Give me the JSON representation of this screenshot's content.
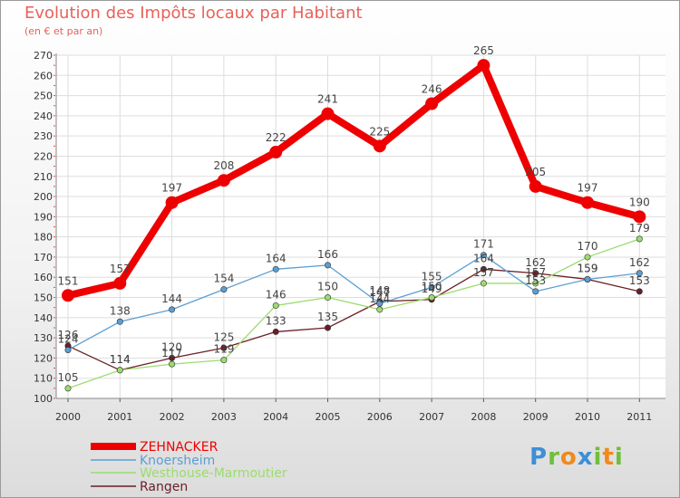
{
  "title": "Evolution des Impôts locaux par Habitant",
  "subtitle": "(en € et par an)",
  "logo": [
    "P",
    "r",
    "o",
    "x",
    "i",
    "t",
    "i"
  ],
  "logo_colors": [
    "#3d8fd6",
    "#6fbf3a",
    "#f08a1c",
    "#3d8fd6",
    "#6fbf3a",
    "#f08a1c",
    "#6fbf3a"
  ],
  "chart_data": {
    "type": "line",
    "title": "Evolution des Impôts locaux par Habitant",
    "subtitle": "(en € et par an)",
    "xlabel": "",
    "ylabel": "",
    "ylim": [
      100,
      270
    ],
    "yticks": [
      100,
      110,
      120,
      130,
      140,
      150,
      160,
      170,
      180,
      190,
      200,
      210,
      220,
      230,
      240,
      250,
      260,
      270
    ],
    "x": [
      "2000",
      "2001",
      "2002",
      "2003",
      "2004",
      "2005",
      "2006",
      "2007",
      "2008",
      "2009",
      "2010",
      "2011"
    ],
    "grid": true,
    "legend_position": "bottom-left",
    "series": [
      {
        "name": "Rangen",
        "color": "#6b1e24",
        "values": [
          126,
          114,
          120,
          125,
          133,
          135,
          148,
          149,
          164,
          162,
          159,
          153
        ]
      },
      {
        "name": "Westhouse-Marmoutier",
        "color": "#9bdc6e",
        "values": [
          105,
          114,
          117,
          119,
          146,
          150,
          144,
          150,
          157,
          157,
          170,
          179
        ]
      },
      {
        "name": "Knoersheim",
        "color": "#5a9fd4",
        "values": [
          124,
          138,
          144,
          154,
          164,
          166,
          147,
          155,
          171,
          153,
          159,
          162
        ]
      },
      {
        "name": "ZEHNACKER",
        "color": "#ee0000",
        "values": [
          151,
          157,
          197,
          208,
          222,
          241,
          225,
          246,
          265,
          205,
          197,
          190
        ]
      }
    ],
    "legend_order": [
      "ZEHNACKER",
      "Knoersheim",
      "Westhouse-Marmoutier",
      "Rangen"
    ]
  }
}
